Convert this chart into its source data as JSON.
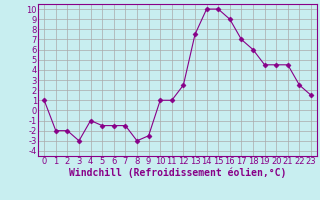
{
  "x": [
    0,
    1,
    2,
    3,
    4,
    5,
    6,
    7,
    8,
    9,
    10,
    11,
    12,
    13,
    14,
    15,
    16,
    17,
    18,
    19,
    20,
    21,
    22,
    23
  ],
  "y": [
    1,
    -2,
    -2,
    -3,
    -1,
    -1.5,
    -1.5,
    -1.5,
    -3,
    -2.5,
    1,
    1,
    2.5,
    7.5,
    10,
    10,
    9,
    7,
    6,
    4.5,
    4.5,
    4.5,
    2.5,
    1.5
  ],
  "line_color": "#880088",
  "marker": "D",
  "marker_size": 2.5,
  "bg_color": "#c8eef0",
  "grid_color": "#aaaaaa",
  "xlabel": "Windchill (Refroidissement éolien,°C)",
  "xlim": [
    -0.5,
    23.5
  ],
  "ylim": [
    -4.5,
    10.5
  ],
  "yticks": [
    -4,
    -3,
    -2,
    -1,
    0,
    1,
    2,
    3,
    4,
    5,
    6,
    7,
    8,
    9,
    10
  ],
  "xticks": [
    0,
    1,
    2,
    3,
    4,
    5,
    6,
    7,
    8,
    9,
    10,
    11,
    12,
    13,
    14,
    15,
    16,
    17,
    18,
    19,
    20,
    21,
    22,
    23
  ],
  "title_color": "#880088",
  "font_size": 6,
  "label_font_size": 7
}
